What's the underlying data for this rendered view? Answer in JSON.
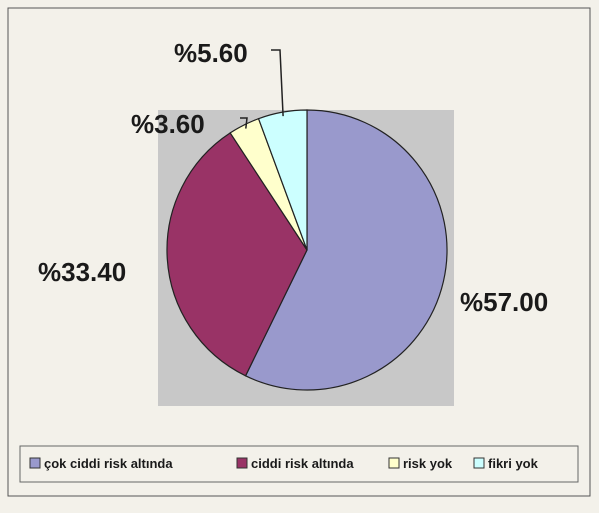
{
  "chart_data": {
    "type": "pie",
    "slices": [
      {
        "name": "çok ciddi risk altında",
        "value": 57.0,
        "label": "%57.00",
        "color": "#9999cc"
      },
      {
        "name": "ciddi risk altında",
        "value": 33.4,
        "label": "%33.40",
        "color": "#993366"
      },
      {
        "name": "risk yok",
        "value": 3.6,
        "label": "%3.60",
        "color": "#ffffcc"
      },
      {
        "name": "fikri yok",
        "value": 5.6,
        "label": "%5.60",
        "color": "#ccffff"
      }
    ],
    "plot_area_color": "#c8c8c8",
    "background_color": "#f3f1ea",
    "legend_placement": "bottom",
    "title": ""
  }
}
